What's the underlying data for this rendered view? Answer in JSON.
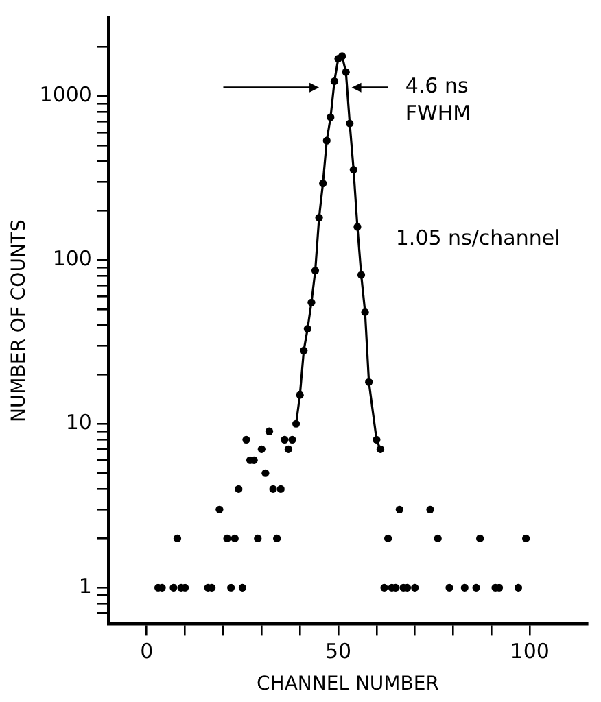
{
  "chart_data": {
    "type": "scatter",
    "xlabel": "CHANNEL NUMBER",
    "ylabel": "NUMBER OF COUNTS",
    "log": "y",
    "grid": false,
    "legend": false,
    "marker": "circle",
    "xlim": [
      -10,
      115
    ],
    "xticks": [
      0,
      {
        "value": 10,
        "label": null
      },
      {
        "value": 20,
        "label": null
      },
      {
        "value": 30,
        "label": null
      },
      {
        "value": 40,
        "label": null
      },
      50,
      {
        "value": 60,
        "label": null
      },
      {
        "value": 70,
        "label": null
      },
      {
        "value": 80,
        "label": null
      },
      {
        "value": 90,
        "label": null
      },
      100
    ],
    "ylim": [
      0.6,
      3000
    ],
    "yticks": [
      {
        "value": 0.7,
        "label": null
      },
      {
        "value": 0.8,
        "label": null
      },
      {
        "value": 0.9,
        "label": null
      },
      1,
      {
        "value": 2,
        "label": null
      },
      {
        "value": 3,
        "label": null
      },
      {
        "value": 4,
        "label": null
      },
      {
        "value": 5,
        "label": null
      },
      {
        "value": 6,
        "label": null
      },
      {
        "value": 7,
        "label": null
      },
      {
        "value": 8,
        "label": null
      },
      {
        "value": 9,
        "label": null
      },
      10,
      {
        "value": 20,
        "label": null
      },
      {
        "value": 30,
        "label": null
      },
      {
        "value": 40,
        "label": null
      },
      {
        "value": 50,
        "label": null
      },
      {
        "value": 60,
        "label": null
      },
      {
        "value": 70,
        "label": null
      },
      {
        "value": 80,
        "label": null
      },
      {
        "value": 90,
        "label": null
      },
      100,
      {
        "value": 200,
        "label": null
      },
      {
        "value": 300,
        "label": null
      },
      {
        "value": 400,
        "label": null
      },
      {
        "value": 500,
        "label": null
      },
      {
        "value": 600,
        "label": null
      },
      {
        "value": 700,
        "label": null
      },
      {
        "value": 800,
        "label": null
      },
      {
        "value": 900,
        "label": null
      },
      1000,
      {
        "value": 2000,
        "label": null
      }
    ],
    "series": [
      {
        "color": "#000000",
        "x": [
          3,
          4,
          7,
          9,
          10,
          16,
          17,
          22,
          25,
          8,
          21,
          23,
          29,
          34,
          19,
          24,
          33,
          35,
          31,
          27,
          28,
          30,
          37,
          26,
          36,
          38,
          32,
          62,
          64,
          65,
          67,
          68,
          70,
          79,
          83,
          86,
          91,
          92,
          97,
          63,
          76,
          87,
          99,
          66,
          74
        ],
        "values": [
          1,
          1,
          1,
          1,
          1,
          1,
          1,
          1,
          1,
          2,
          2,
          2,
          2,
          2,
          3,
          4,
          4,
          4,
          5,
          6,
          6,
          7,
          7,
          8,
          8,
          8,
          9,
          1,
          1,
          1,
          1,
          1,
          1,
          1,
          1,
          1,
          1,
          1,
          1,
          2,
          2,
          2,
          2,
          3,
          3
        ]
      },
      {
        "type": "line",
        "color": "#000000",
        "x": [
          39,
          40,
          41,
          42,
          43,
          44,
          45,
          46,
          47,
          48,
          49,
          50,
          51,
          52,
          53,
          54,
          55,
          56,
          57,
          58,
          60,
          61
        ],
        "values": [
          10,
          15,
          28,
          38,
          55,
          86,
          181,
          293,
          534,
          742,
          1230,
          1690,
          1750,
          1400,
          680,
          355,
          159,
          81,
          48,
          18,
          8,
          7
        ]
      }
    ],
    "annotations": [
      "4.6 ns\nFWHM",
      "1.05 ns/channel"
    ]
  }
}
